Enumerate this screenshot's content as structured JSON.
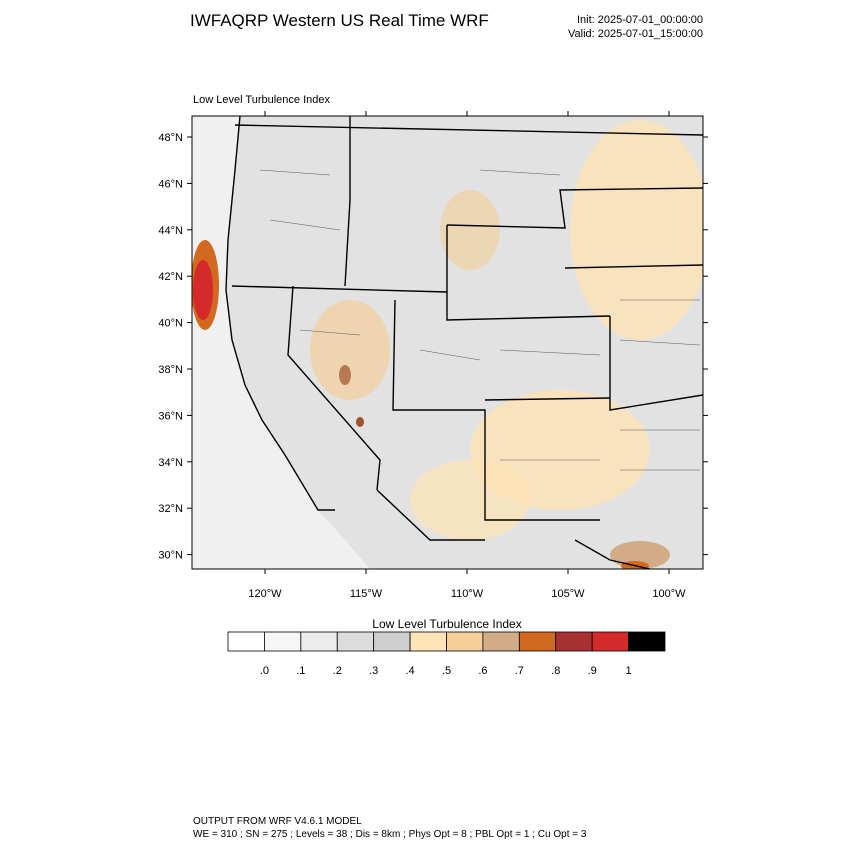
{
  "header": {
    "title": "IWFAQRP Western US Real Time WRF",
    "init": "Init: 2025-07-01_00:00:00",
    "valid": "Valid: 2025-07-01_15:00:00"
  },
  "map": {
    "title": "Low Level Turbulence Index",
    "lat_labels": [
      "48°N",
      "46°N",
      "44°N",
      "42°N",
      "40°N",
      "38°N",
      "36°N",
      "34°N",
      "32°N",
      "30°N"
    ],
    "lon_labels": [
      "120°W",
      "115°W",
      "110°W",
      "105°W",
      "100°W"
    ]
  },
  "colorbar": {
    "title": "Low Level Turbulence Index",
    "labels": [
      ".0",
      ".1",
      ".2",
      ".3",
      ".4",
      ".5",
      ".6",
      ".7",
      ".8",
      ".9",
      "1"
    ],
    "colors": [
      "#ffffff",
      "#f6f6f6",
      "#ececec",
      "#dcdcdc",
      "#cfcfcf",
      "#ffe4b5",
      "#f4cf9a",
      "#d2ac86",
      "#d2691e",
      "#a83232",
      "#d42a2a",
      "#000000"
    ]
  },
  "footer": {
    "line1": "OUTPUT FROM WRF V4.6.1 MODEL",
    "line2": "WE = 310 ; SN = 275 ; Levels = 38 ; Dis = 8km ; Phys Opt = 8 ; PBL Opt = 1 ; Cu Opt = 3"
  }
}
